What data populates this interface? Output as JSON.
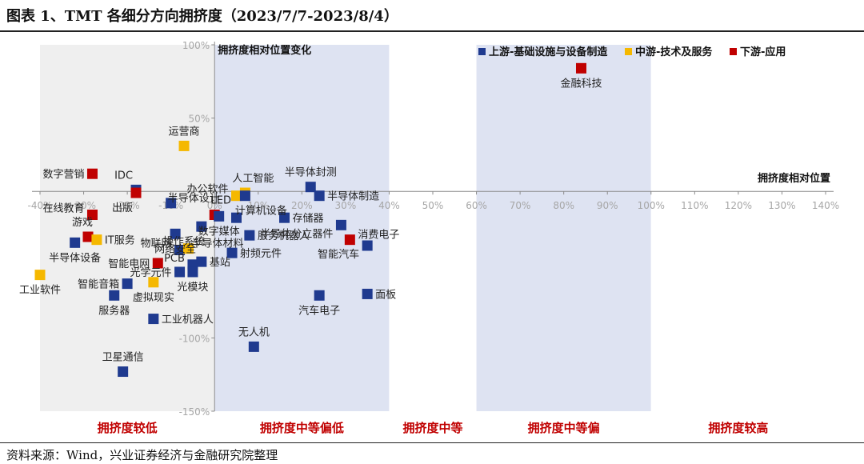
{
  "figure": {
    "title": "图表 1、TMT 各细分方向拥挤度（2023/7/7-2023/8/4）",
    "source": "资料来源：Wind，兴业证券经济与金融研究院整理"
  },
  "chart_data": {
    "type": "scatter",
    "xlabel": "拥挤度相对位置",
    "ylabel": "拥挤度相对位置变化",
    "xlim": [
      -40,
      140
    ],
    "ylim": [
      -150,
      100
    ],
    "x_ticks": [
      "-40%",
      "-30%",
      "-20%",
      "-10%",
      "0%",
      "10%",
      "20%",
      "30%",
      "40%",
      "50%",
      "60%",
      "70%",
      "80%",
      "90%",
      "100%",
      "110%",
      "120%",
      "130%",
      "140%"
    ],
    "y_ticks": [
      "100%",
      "50%",
      "-100%",
      "-150%"
    ],
    "legend_position": "top-right",
    "series": [
      {
        "name": "上游-基础设施与设备制造",
        "color": "#1F3A8F"
      },
      {
        "name": "中游-技术及服务",
        "color": "#F5B800"
      },
      {
        "name": "下游-应用",
        "color": "#C00000"
      }
    ],
    "points": [
      {
        "label": "金融科技",
        "x": 84,
        "y": 84,
        "series": 2
      },
      {
        "label": "运营商",
        "x": -7,
        "y": 31,
        "series": 1
      },
      {
        "label": "数字营销",
        "x": -28,
        "y": 12,
        "series": 2
      },
      {
        "label": "IDC",
        "x": -18,
        "y": 1,
        "series": 0
      },
      {
        "label": "出版",
        "x": -18,
        "y": -1,
        "series": 2
      },
      {
        "label": "半导体设计",
        "x": -10,
        "y": -8,
        "series": 0
      },
      {
        "label": "办公软件",
        "x": 5,
        "y": -3,
        "series": 1
      },
      {
        "label": "人工智能",
        "x": 7,
        "y": -1,
        "series": 1
      },
      {
        "label": "半导体封测",
        "x": 22,
        "y": 3,
        "series": 0
      },
      {
        "label": "半导体制造",
        "x": 24,
        "y": -3,
        "series": 0
      },
      {
        "label": "计算机设备",
        "x": 7,
        "y": -3,
        "series": 0
      },
      {
        "label": "在线教育",
        "x": -28,
        "y": -16,
        "series": 2
      },
      {
        "label": "游戏",
        "x": -29,
        "y": -31,
        "series": 2
      },
      {
        "label": "IT服务",
        "x": -27,
        "y": -33,
        "series": 1
      },
      {
        "label": "半导体设备",
        "x": -32,
        "y": -35,
        "series": 0
      },
      {
        "label": "网络安全",
        "x": -9,
        "y": -29,
        "series": 0
      },
      {
        "label": "操作系统",
        "x": -3,
        "y": -24,
        "series": 0
      },
      {
        "label": "LED",
        "x": 0,
        "y": -16,
        "series": 2
      },
      {
        "label": "数字媒体",
        "x": 1,
        "y": -17,
        "series": 0
      },
      {
        "label": "计算机设备(2)",
        "x": 5,
        "y": -18,
        "series": 0
      },
      {
        "label": "存储器",
        "x": 16,
        "y": -18,
        "series": 0
      },
      {
        "label": "半导体分立器件",
        "x": 29,
        "y": -23,
        "series": 0
      },
      {
        "label": "服务机器人",
        "x": 8,
        "y": -30,
        "series": 0
      },
      {
        "label": "消费电子",
        "x": 31,
        "y": -33,
        "series": 2
      },
      {
        "label": "智能汽车",
        "x": 35,
        "y": -37,
        "series": 0
      },
      {
        "label": "物联网",
        "x": -8,
        "y": -40,
        "series": 0
      },
      {
        "label": "半导体材料",
        "x": -6,
        "y": -39,
        "series": 1
      },
      {
        "label": "射频元件",
        "x": 4,
        "y": -42,
        "series": 0
      },
      {
        "label": "智能电网",
        "x": -13,
        "y": -49,
        "series": 2
      },
      {
        "label": "PCB",
        "x": -5,
        "y": -50,
        "series": 0
      },
      {
        "label": "基站",
        "x": -3,
        "y": -48,
        "series": 0
      },
      {
        "label": "光学元件",
        "x": -8,
        "y": -55,
        "series": 0
      },
      {
        "label": "光模块",
        "x": -5,
        "y": -55,
        "series": 0
      },
      {
        "label": "工业软件",
        "x": -40,
        "y": -57,
        "series": 1
      },
      {
        "label": "智能音箱",
        "x": -20,
        "y": -63,
        "series": 0
      },
      {
        "label": "虚拟现实",
        "x": -14,
        "y": -62,
        "series": 1
      },
      {
        "label": "服务器",
        "x": -23,
        "y": -71,
        "series": 0
      },
      {
        "label": "汽车电子",
        "x": 24,
        "y": -71,
        "series": 0
      },
      {
        "label": "面板",
        "x": 35,
        "y": -70,
        "series": 0
      },
      {
        "label": "工业机器人",
        "x": -14,
        "y": -87,
        "series": 0
      },
      {
        "label": "无人机",
        "x": 9,
        "y": -106,
        "series": 0
      },
      {
        "label": "卫星通信",
        "x": -21,
        "y": -123,
        "series": 0
      }
    ],
    "zones": [
      {
        "label": "拥挤度较低",
        "x_range": [
          -40,
          0
        ]
      },
      {
        "label": "拥挤度中等偏低",
        "x_range": [
          0,
          40
        ]
      },
      {
        "label": "拥挤度中等",
        "x_range": [
          40,
          60
        ]
      },
      {
        "label": "拥挤度中等偏",
        "x_range": [
          60,
          100
        ]
      },
      {
        "label": "拥挤度较高",
        "x_range": [
          100,
          140
        ]
      }
    ]
  }
}
